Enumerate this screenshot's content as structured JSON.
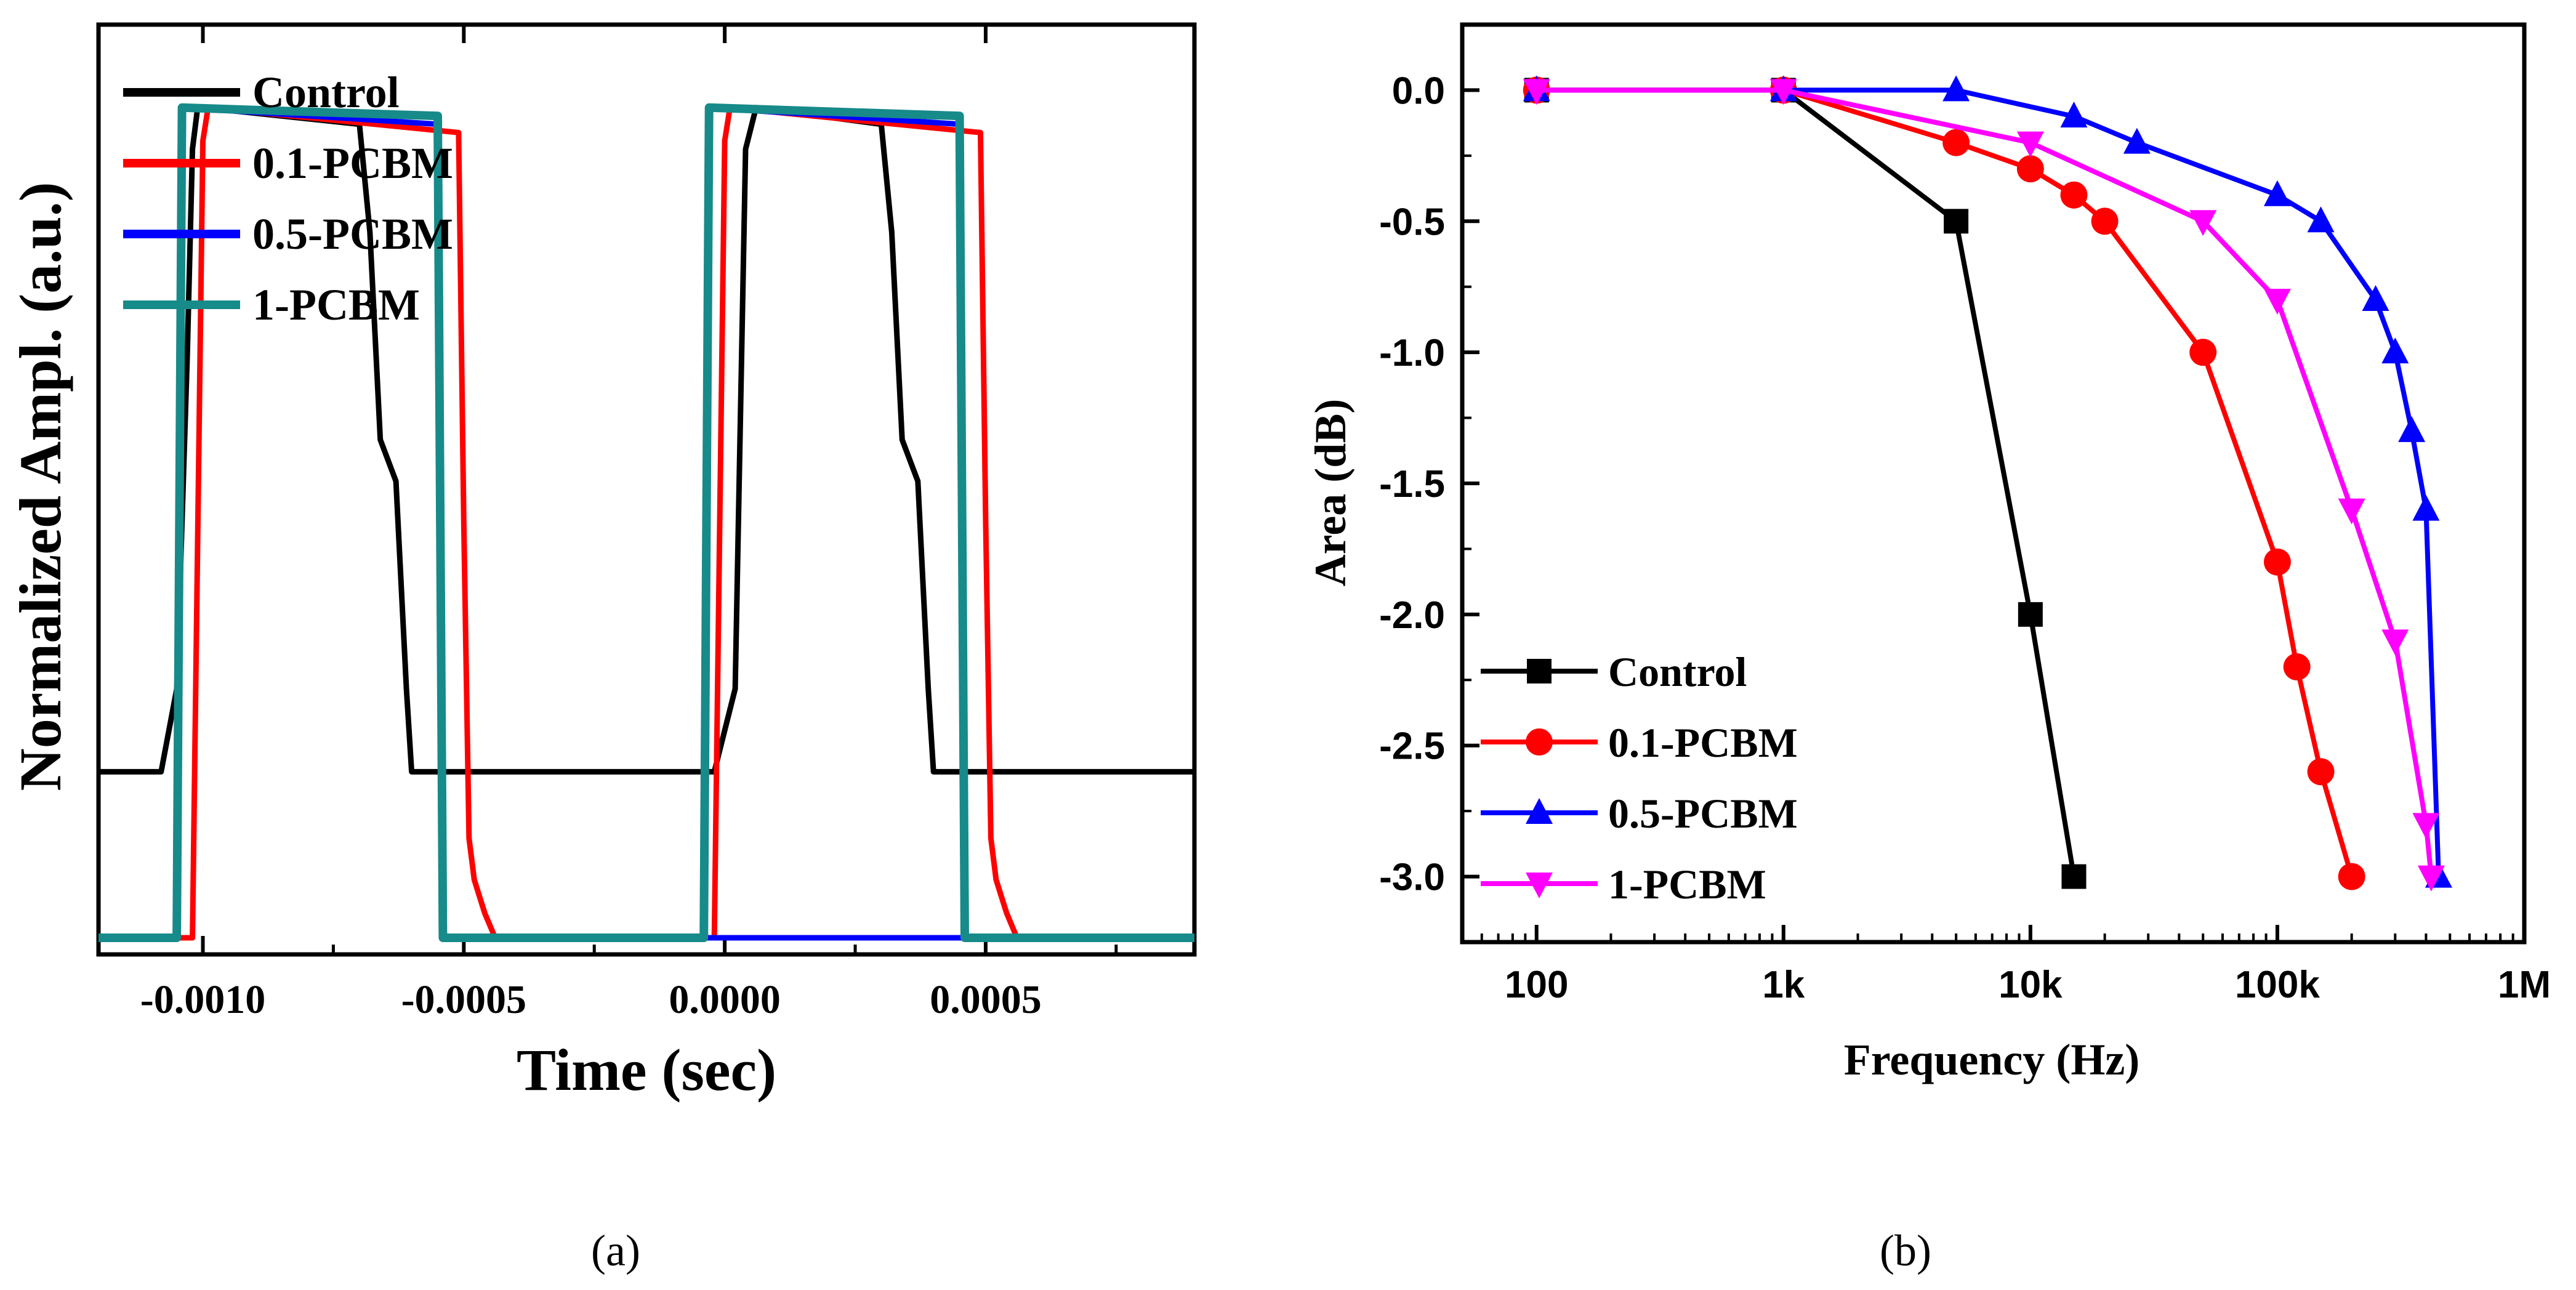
{
  "chart_data": [
    {
      "id": "a",
      "type": "line",
      "panel_label": "(a)",
      "xlabel": "Time (sec)",
      "ylabel": "Normalized Ampl. (a.u.)",
      "xlim": [
        -0.0012,
        0.0009
      ],
      "ylim": [
        -0.02,
        1.1
      ],
      "xticks": [
        -0.001,
        -0.0005,
        0.0,
        0.0005
      ],
      "xtick_labels": [
        "-0.0010",
        "-0.0005",
        "0.0000",
        "0.0005"
      ],
      "legend_position": "top-left",
      "series": [
        {
          "name": "Control",
          "color": "#000000",
          "x": [
            -0.0012,
            -0.00108,
            -0.00105,
            -0.00103,
            -0.00102,
            -0.00101,
            -0.001,
            -0.0007,
            -0.00068,
            -0.00066,
            -0.00063,
            -0.00061,
            -0.0006,
            -2e-05,
            2e-05,
            4e-05,
            6e-05,
            0.0003,
            0.00032,
            0.00034,
            0.00037,
            0.00039,
            0.0004,
            0.0009
          ],
          "y": [
            0.2,
            0.2,
            0.3,
            0.7,
            0.95,
            1.0,
            1.0,
            0.98,
            0.85,
            0.6,
            0.55,
            0.3,
            0.2,
            0.2,
            0.3,
            0.95,
            1.0,
            0.98,
            0.85,
            0.6,
            0.55,
            0.3,
            0.2,
            0.2
          ]
        },
        {
          "name": "0.1-PCBM",
          "color": "#ff0000",
          "x": [
            -0.0012,
            -0.00102,
            -0.001,
            -0.00099,
            -0.00051,
            -0.0005,
            -0.00049,
            -0.00048,
            -0.00046,
            -0.00044,
            -2e-05,
            0.0,
            1e-05,
            0.00049,
            0.0005,
            0.00051,
            0.00052,
            0.00054,
            0.00056,
            0.0009
          ],
          "y": [
            0.0,
            0.0,
            0.96,
            1.0,
            0.97,
            0.5,
            0.12,
            0.07,
            0.03,
            0.0,
            0.0,
            0.96,
            1.0,
            0.97,
            0.5,
            0.12,
            0.07,
            0.03,
            0.0,
            0.0
          ]
        },
        {
          "name": "0.5-PCBM",
          "color": "#0000ff",
          "x": [
            -0.0012,
            -0.00105,
            -0.00104,
            -0.00055,
            -0.00054,
            -0.00053,
            0.0009
          ],
          "y": [
            0.0,
            0.0,
            1.0,
            0.98,
            0.0,
            0.0,
            0.0
          ],
          "x2": [
            -4e-05,
            -3e-05,
            0.00045,
            0.00046,
            0.00047,
            0.0009
          ],
          "y2": [
            0.0,
            1.0,
            0.98,
            0.0,
            0.0,
            0.0
          ]
        },
        {
          "name": "1-PCBM",
          "color": "#178a8a",
          "x": [
            -0.0012,
            -0.00105,
            -0.00104,
            -0.00055,
            -0.00054,
            -4e-05,
            -3e-05,
            0.00045,
            0.00046,
            0.0009
          ],
          "y": [
            0.0,
            0.0,
            1.0,
            0.99,
            0.0,
            0.0,
            1.0,
            0.99,
            0.0,
            0.0
          ]
        }
      ]
    },
    {
      "id": "b",
      "type": "line",
      "panel_label": "(b)",
      "xlabel": "Frequency (Hz)",
      "ylabel": "Area (dB)",
      "xscale": "log",
      "xlim": [
        50,
        1000000
      ],
      "ylim": [
        -3.25,
        0.25
      ],
      "xticks": [
        100,
        1000,
        10000,
        100000,
        1000000
      ],
      "xtick_labels": [
        "100",
        "1k",
        "10k",
        "100k",
        "1M"
      ],
      "yticks": [
        0.0,
        -0.5,
        -1.0,
        -1.5,
        -2.0,
        -2.5,
        -3.0
      ],
      "ytick_labels": [
        "0.0",
        "-0.5",
        "-1.0",
        "-1.5",
        "-2.0",
        "-2.5",
        "-3.0"
      ],
      "legend_position": "bottom-left",
      "series": [
        {
          "name": "Control",
          "color": "#000000",
          "marker": "square",
          "x": [
            100,
            1000,
            5000,
            10000,
            15000
          ],
          "y": [
            0.0,
            0.0,
            -0.5,
            -2.0,
            -3.0
          ]
        },
        {
          "name": "0.1-PCBM",
          "color": "#ff0000",
          "marker": "circle",
          "x": [
            100,
            1000,
            5000,
            10000,
            15000,
            20000,
            50000,
            100000,
            120000,
            150000,
            200000
          ],
          "y": [
            0.0,
            0.0,
            -0.2,
            -0.3,
            -0.4,
            -0.5,
            -1.0,
            -1.8,
            -2.2,
            -2.6,
            -3.0
          ]
        },
        {
          "name": "0.5-PCBM",
          "color": "#0000ff",
          "marker": "triangle-up",
          "x": [
            100,
            1000,
            5000,
            15000,
            27000,
            100000,
            150000,
            250000,
            300000,
            350000,
            400000,
            450000
          ],
          "y": [
            0.0,
            0.0,
            0.0,
            -0.1,
            -0.2,
            -0.4,
            -0.5,
            -0.8,
            -1.0,
            -1.3,
            -1.6,
            -3.0
          ]
        },
        {
          "name": "1-PCBM",
          "color": "#ff00ff",
          "marker": "triangle-down",
          "x": [
            100,
            1000,
            10000,
            50000,
            100000,
            200000,
            300000,
            400000,
            420000
          ],
          "y": [
            0.0,
            0.0,
            -0.2,
            -0.5,
            -0.8,
            -1.6,
            -2.1,
            -2.8,
            -3.0
          ]
        }
      ]
    }
  ]
}
